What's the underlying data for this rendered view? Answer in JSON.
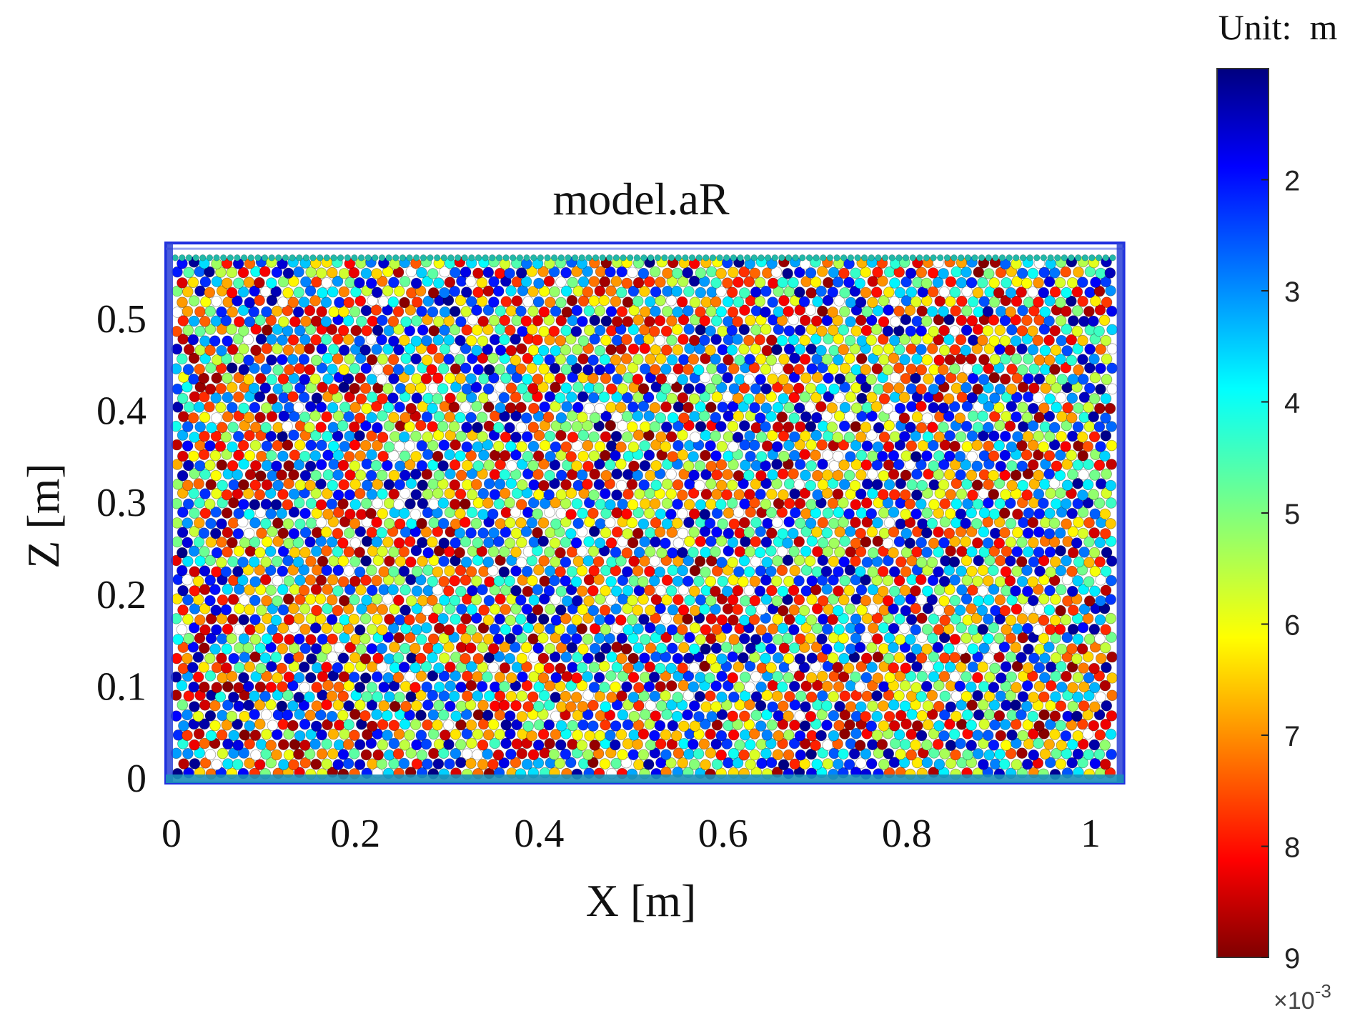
{
  "chart_data": {
    "type": "scatter",
    "title": "model.aR",
    "xlabel": "X [m]",
    "ylabel": "Z [m]",
    "xlim": [
      0,
      1.05
    ],
    "ylim": [
      0,
      0.58
    ],
    "x_ticks": [
      {
        "value": 0,
        "label": "0"
      },
      {
        "value": 0.2,
        "label": "0.2"
      },
      {
        "value": 0.4,
        "label": "0.4"
      },
      {
        "value": 0.6,
        "label": "0.6"
      },
      {
        "value": 0.8,
        "label": "0.8"
      },
      {
        "value": 1.0,
        "label": "1"
      }
    ],
    "y_ticks": [
      {
        "value": 0,
        "label": "0"
      },
      {
        "value": 0.1,
        "label": "0.1"
      },
      {
        "value": 0.2,
        "label": "0.2"
      },
      {
        "value": 0.3,
        "label": "0.3"
      },
      {
        "value": 0.4,
        "label": "0.4"
      },
      {
        "value": 0.5,
        "label": "0.5"
      }
    ],
    "particle_region": {
      "x": [
        0,
        1.03
      ],
      "z": [
        0,
        0.565
      ]
    },
    "container_walls": {
      "x": [
        0,
        1.03
      ],
      "z": [
        0,
        0.58
      ],
      "color": "#1f2ee0"
    },
    "particle_radius_range": [
      0.001,
      0.009
    ],
    "colorbar": {
      "unit_label": "Unit:  m",
      "range": [
        1,
        9
      ],
      "ticks": [
        {
          "value": 2,
          "label": "2"
        },
        {
          "value": 3,
          "label": "3"
        },
        {
          "value": 4,
          "label": "4"
        },
        {
          "value": 5,
          "label": "5"
        },
        {
          "value": 6,
          "label": "6"
        },
        {
          "value": 7,
          "label": "7"
        },
        {
          "value": 8,
          "label": "8"
        },
        {
          "value": 9,
          "label": "9"
        }
      ],
      "multiplier": "×10",
      "exponent": "-3",
      "colormap": "jet",
      "orientation": "reversed (top = small radius)"
    },
    "grid": false
  }
}
